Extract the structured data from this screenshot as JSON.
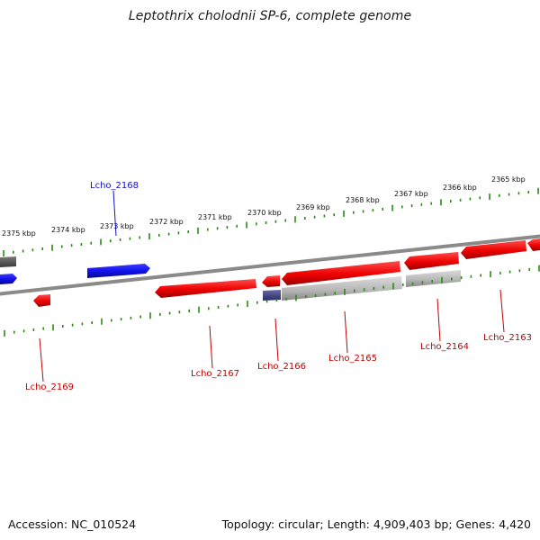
{
  "title": "Leptothrix cholodnii SP-6, complete genome",
  "footer": {
    "accession": "Accession: NC_010524",
    "summary": "Topology: circular; Length: 4,909,403 bp; Genes: 4,420"
  },
  "kbp_labels": [
    "2375 kbp",
    "2374 kbp",
    "2373 kbp",
    "2372 kbp",
    "2371 kbp",
    "2370 kbp",
    "2369 kbp",
    "2368 kbp",
    "2367 kbp",
    "2366 kbp",
    "2365 kbp"
  ],
  "gene_labels": [
    {
      "name": "Lcho_2168",
      "strand": "forward"
    },
    {
      "name": "Lcho_2169",
      "strand": "reverse"
    },
    {
      "name": "Lcho_2167",
      "strand": "reverse"
    },
    {
      "name": "Lcho_2166",
      "strand": "reverse"
    },
    {
      "name": "Lcho_2165",
      "strand": "reverse"
    },
    {
      "name": "Lcho_2164",
      "strand": "reverse"
    },
    {
      "name": "Lcho_2163",
      "strand": "reverse"
    }
  ],
  "colors": {
    "forward_gene": "#1010e8",
    "reverse_gene": "#ee0000",
    "pseudo_gene": "#b8b8b8",
    "tick": "#2a8a14",
    "backbone": "#8a8a8a",
    "forward_label": "#1010c0",
    "reverse_label": "#c00000"
  }
}
